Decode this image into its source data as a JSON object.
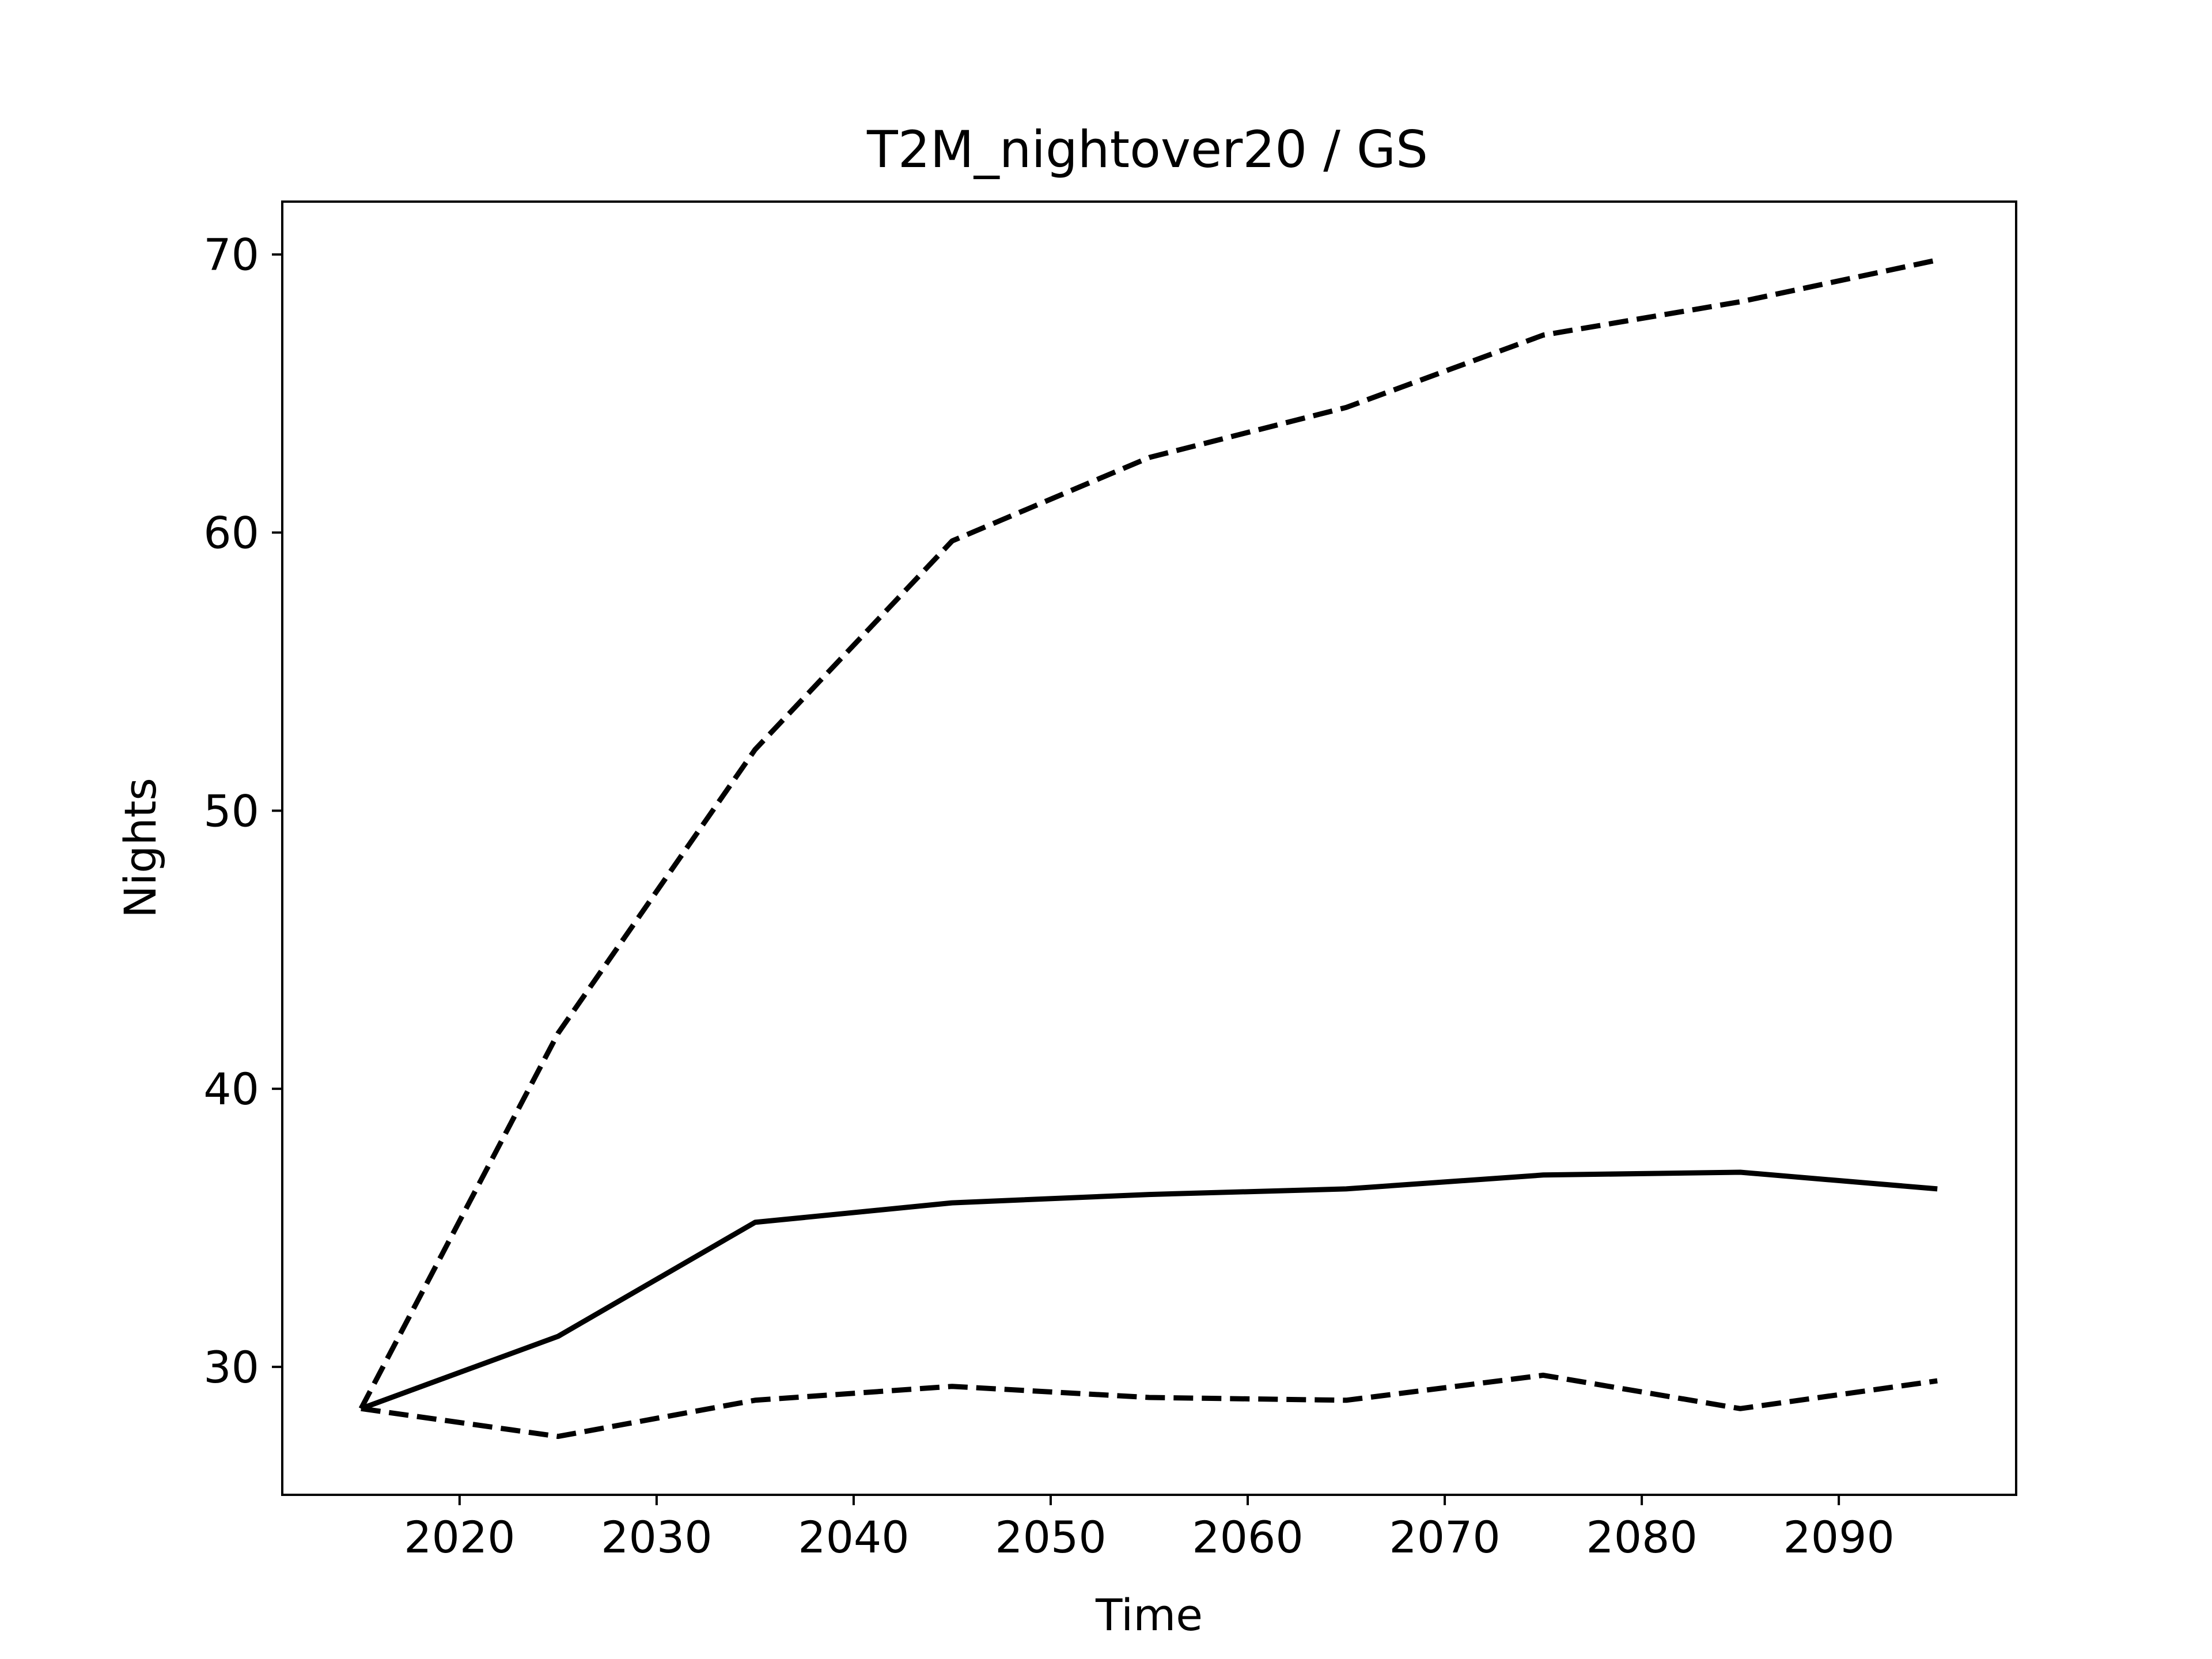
{
  "chart_data": {
    "type": "line",
    "title": "T2M_nightover20 / GS",
    "xlabel": "Time",
    "ylabel": "Nights",
    "xlim": [
      2011,
      2099
    ],
    "ylim": [
      25.4,
      71.9
    ],
    "grid": false,
    "x_ticks": [
      2020,
      2030,
      2040,
      2050,
      2060,
      2070,
      2080,
      2090
    ],
    "x_tick_labels": [
      "2020",
      "2030",
      "2040",
      "2050",
      "2060",
      "2070",
      "2080",
      "2090"
    ],
    "y_ticks": [
      30,
      40,
      50,
      60,
      70
    ],
    "y_tick_labels": [
      "30",
      "40",
      "50",
      "60",
      "70"
    ],
    "x": [
      2015,
      2025,
      2035,
      2045,
      2055,
      2065,
      2075,
      2085,
      2095
    ],
    "series": [
      {
        "values": [
          28.5,
          31.1,
          35.2,
          35.9,
          36.2,
          36.4,
          36.9,
          37.0,
          36.4
        ],
        "style": "solid",
        "color": "#000000"
      },
      {
        "values": [
          28.5,
          42.0,
          52.2,
          59.7,
          62.7,
          64.5,
          67.1,
          68.3,
          69.8
        ],
        "style": "dashed",
        "color": "#000000"
      },
      {
        "values": [
          28.5,
          27.5,
          28.8,
          29.3,
          28.9,
          28.8,
          29.7,
          28.5,
          29.5
        ],
        "style": "dashed",
        "color": "#000000"
      }
    ]
  }
}
